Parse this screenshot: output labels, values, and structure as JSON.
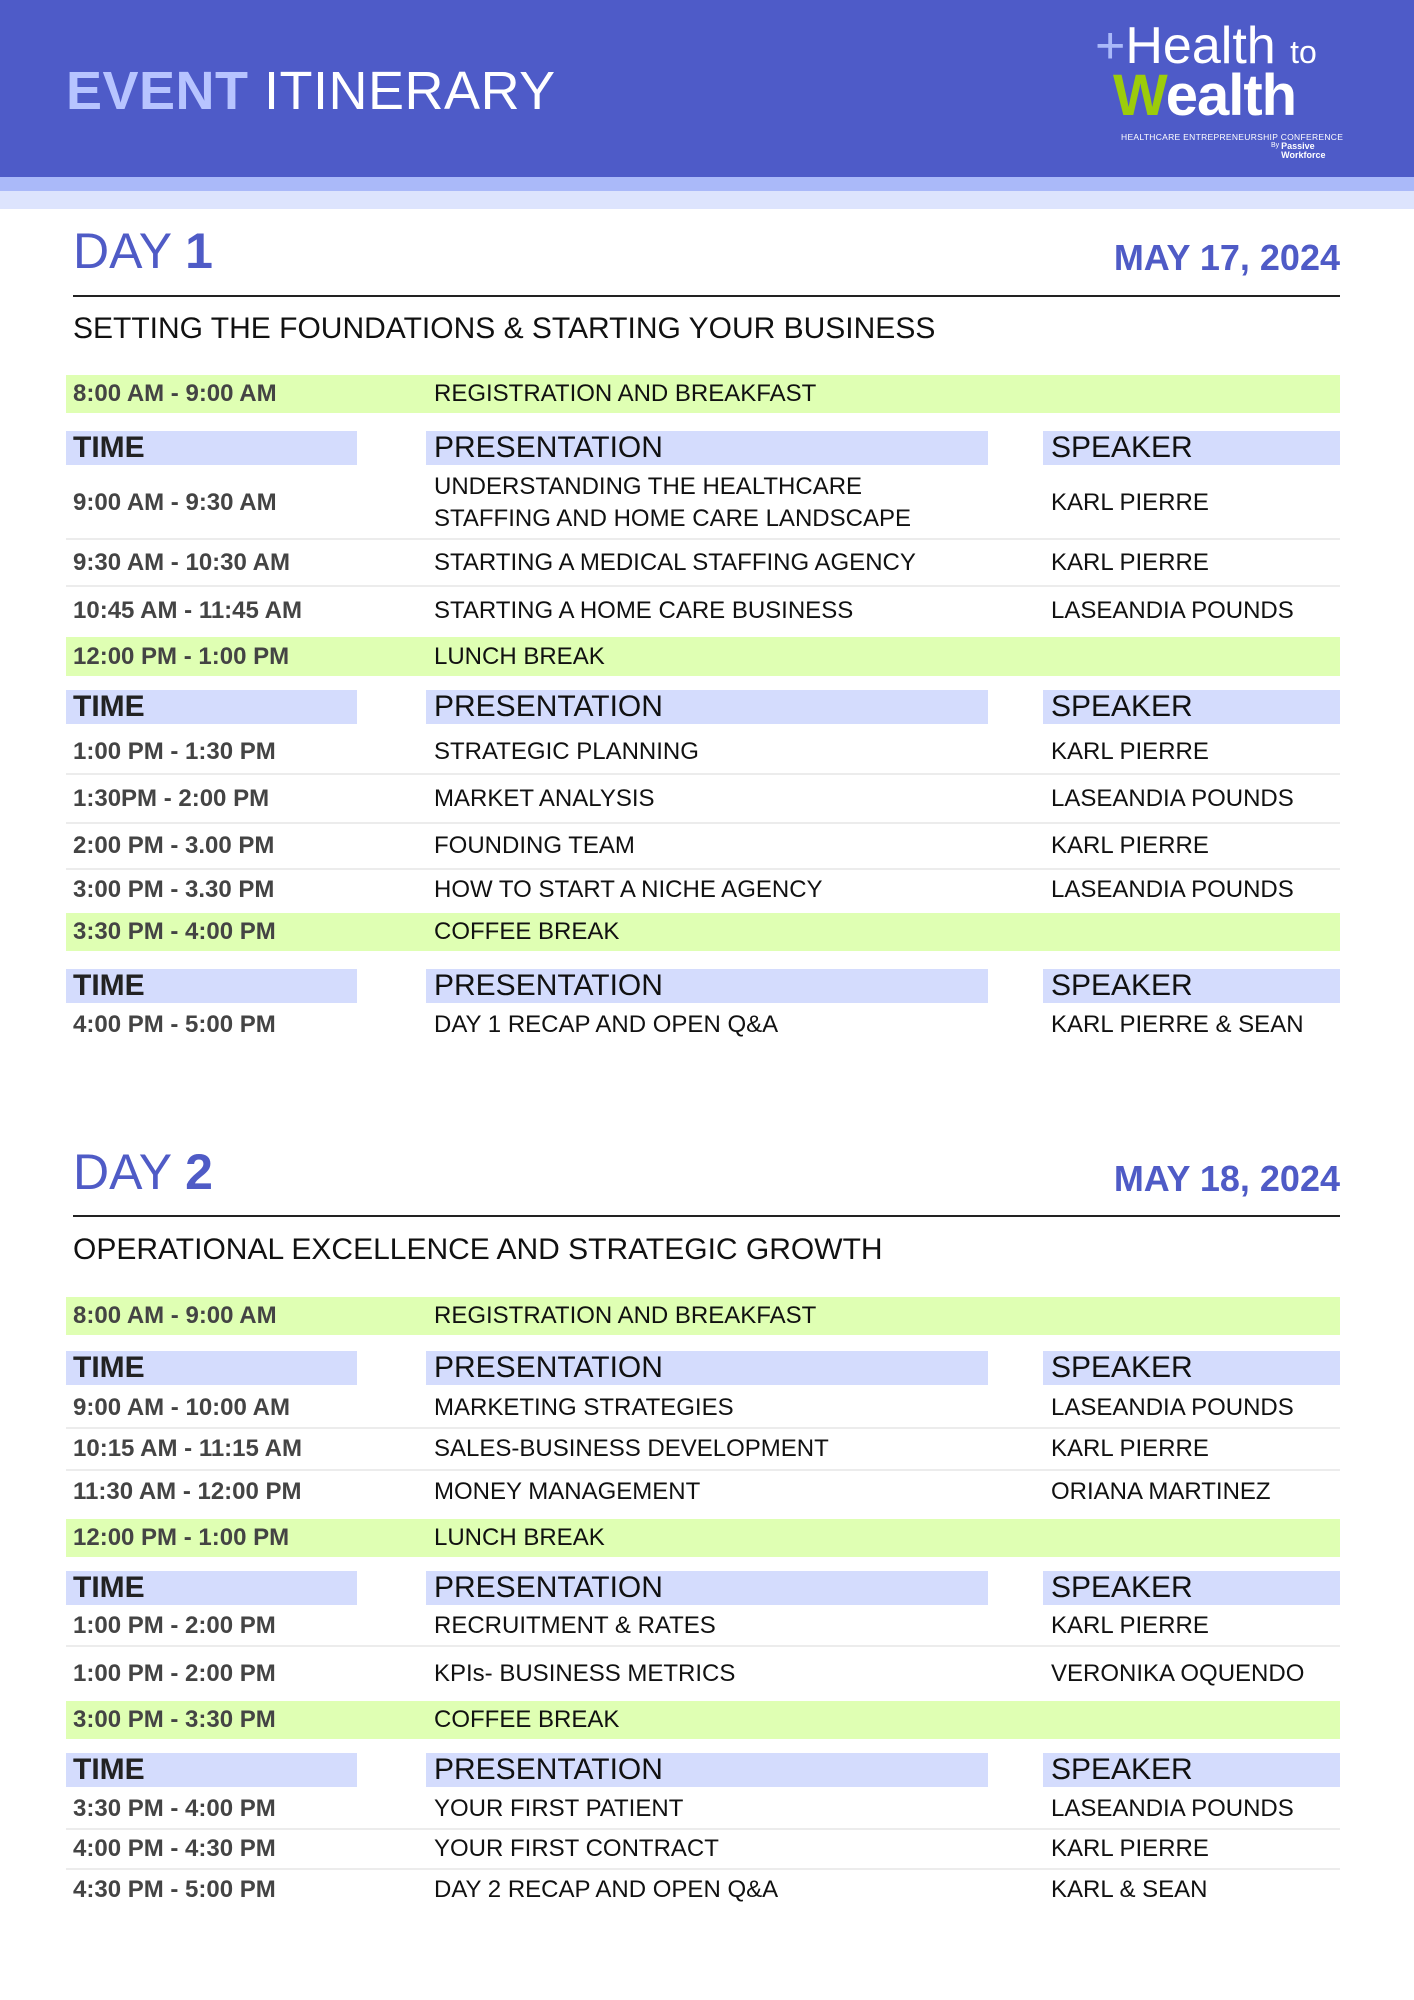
{
  "header": {
    "title_bold": "EVENT",
    "title_rest": " ITINERARY"
  },
  "logo": {
    "plus": "+",
    "health": "Health",
    "to": "to",
    "w": "W",
    "ealth": "ealth",
    "tagline": "HEALTHCARE ENTREPRENEURSHIP CONFERENCE",
    "by": "By",
    "company_line1": "Passive",
    "company_line2": "Workforce"
  },
  "colors": {
    "header": "#4e5bc8",
    "accent": "#4f5bc6",
    "break_row": "#dfffb3",
    "column_header": "#d4dcfd",
    "logo_green": "#9ccc0a"
  },
  "column_headers": {
    "time": "TIME",
    "presentation": "PRESENTATION",
    "speaker": "SPEAKER"
  },
  "days": [
    {
      "label": "DAY",
      "number": "1",
      "date": "MAY 17, 2024",
      "theme": "SETTING THE FOUNDATIONS & STARTING YOUR BUSINESS",
      "rows": [
        {
          "type": "break",
          "time": "8:00 AM - 9:00 AM",
          "title": "REGISTRATION AND BREAKFAST"
        },
        {
          "type": "header"
        },
        {
          "type": "session",
          "time": "9:00 AM - 9:30 AM",
          "title": "UNDERSTANDING THE HEALTHCARE\nSTAFFING AND HOME CARE LANDSCAPE",
          "speaker": "KARL PIERRE"
        },
        {
          "type": "session",
          "time": "9:30 AM - 10:30 AM",
          "title": "STARTING A MEDICAL STAFFING AGENCY",
          "speaker": "KARL PIERRE"
        },
        {
          "type": "session",
          "time": "10:45 AM - 11:45 AM",
          "title": "STARTING A HOME CARE BUSINESS",
          "speaker": "LASEANDIA POUNDS"
        },
        {
          "type": "break",
          "time": "12:00 PM  - 1:00 PM",
          "title": "LUNCH BREAK"
        },
        {
          "type": "header"
        },
        {
          "type": "session",
          "time": "1:00 PM - 1:30 PM",
          "title": "STRATEGIC PLANNING",
          "speaker": "KARL PIERRE"
        },
        {
          "type": "session",
          "time": "1:30PM - 2:00 PM",
          "title": "MARKET ANALYSIS",
          "speaker": "LASEANDIA POUNDS"
        },
        {
          "type": "session",
          "time": "2:00 PM - 3.00 PM",
          "title": "FOUNDING TEAM",
          "speaker": "KARL PIERRE"
        },
        {
          "type": "session",
          "time": "3:00 PM - 3.30 PM",
          "title": "HOW TO START A NICHE AGENCY",
          "speaker": "LASEANDIA POUNDS"
        },
        {
          "type": "break",
          "time": "3:30 PM - 4:00 PM",
          "title": "COFFEE BREAK"
        },
        {
          "type": "header"
        },
        {
          "type": "session",
          "time": "4:00 PM - 5:00 PM",
          "title": "DAY 1 RECAP AND OPEN Q&A",
          "speaker": "KARL PIERRE & SEAN"
        }
      ]
    },
    {
      "label": "DAY",
      "number": "2",
      "date": "MAY 18, 2024",
      "theme": "OPERATIONAL EXCELLENCE AND STRATEGIC GROWTH",
      "rows": [
        {
          "type": "break",
          "time": "8:00 AM - 9:00 AM",
          "title": "REGISTRATION AND BREAKFAST"
        },
        {
          "type": "header"
        },
        {
          "type": "session",
          "time": "9:00 AM - 10:00 AM",
          "title": "MARKETING STRATEGIES",
          "speaker": "LASEANDIA POUNDS"
        },
        {
          "type": "session",
          "time": "10:15 AM - 11:15 AM",
          "title": "SALES-BUSINESS DEVELOPMENT",
          "speaker": "KARL PIERRE"
        },
        {
          "type": "session",
          "time": "11:30 AM - 12:00 PM",
          "title": "MONEY MANAGEMENT",
          "speaker": "ORIANA MARTINEZ"
        },
        {
          "type": "break",
          "time": "12:00 PM - 1:00 PM",
          "title": "LUNCH BREAK"
        },
        {
          "type": "header"
        },
        {
          "type": "session",
          "time": "1:00 PM - 2:00 PM",
          "title": "RECRUITMENT & RATES",
          "speaker": "KARL PIERRE"
        },
        {
          "type": "session",
          "time": "1:00 PM - 2:00 PM",
          "title": "KPIs- BUSINESS METRICS",
          "speaker": "VERONIKA OQUENDO"
        },
        {
          "type": "break",
          "time": "3:00 PM - 3:30 PM",
          "title": "COFFEE BREAK"
        },
        {
          "type": "header"
        },
        {
          "type": "session",
          "time": "3:30 PM - 4:00 PM",
          "title": "YOUR FIRST PATIENT",
          "speaker": "LASEANDIA POUNDS"
        },
        {
          "type": "session",
          "time": "4:00 PM - 4:30 PM",
          "title": "YOUR FIRST CONTRACT",
          "speaker": "KARL PIERRE"
        },
        {
          "type": "session",
          "time": "4:30 PM - 5:00 PM",
          "title": "DAY 2 RECAP AND OPEN Q&A",
          "speaker": "KARL & SEAN"
        }
      ]
    }
  ]
}
